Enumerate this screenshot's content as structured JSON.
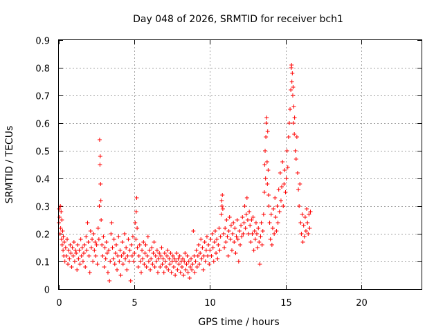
{
  "chart_data": {
    "type": "scatter",
    "title": "Day 048 of 2026, SRMTID for receiver bch1",
    "xlabel": "GPS time / hours",
    "ylabel": "SRMTID / TECUs",
    "xlim": [
      0,
      24
    ],
    "ylim": [
      0,
      0.9
    ],
    "x_ticks": [
      0,
      5,
      10,
      15,
      20
    ],
    "x_tick_labels": [
      "0",
      "5",
      "10",
      "15",
      "20"
    ],
    "y_ticks": [
      0,
      0.1,
      0.2,
      0.3,
      0.4,
      0.5,
      0.6,
      0.7,
      0.8,
      0.9
    ],
    "y_tick_labels": [
      "0",
      "0.1",
      "0.2",
      "0.3",
      "0.4",
      "0.5",
      "0.6",
      "0.7",
      "0.8",
      "0.9"
    ],
    "grid": true,
    "marker": "plus",
    "series_color": "#ff0000",
    "points": [
      [
        0.0,
        0.24
      ],
      [
        0.02,
        0.29
      ],
      [
        0.05,
        0.26
      ],
      [
        0.08,
        0.2
      ],
      [
        0.1,
        0.3
      ],
      [
        0.12,
        0.22
      ],
      [
        0.15,
        0.28
      ],
      [
        0.18,
        0.18
      ],
      [
        0.2,
        0.25
      ],
      [
        0.22,
        0.16
      ],
      [
        0.25,
        0.21
      ],
      [
        0.28,
        0.14
      ],
      [
        0.3,
        0.19
      ],
      [
        0.33,
        0.12
      ],
      [
        0.36,
        0.17
      ],
      [
        0.4,
        0.1
      ],
      [
        0.45,
        0.15
      ],
      [
        0.5,
        0.12
      ],
      [
        0.55,
        0.18
      ],
      [
        0.6,
        0.09
      ],
      [
        0.65,
        0.14
      ],
      [
        0.7,
        0.11
      ],
      [
        0.75,
        0.16
      ],
      [
        0.8,
        0.13
      ],
      [
        0.85,
        0.08
      ],
      [
        0.9,
        0.15
      ],
      [
        0.95,
        0.12
      ],
      [
        1.0,
        0.17
      ],
      [
        1.05,
        0.1
      ],
      [
        1.1,
        0.14
      ],
      [
        1.15,
        0.13
      ],
      [
        1.2,
        0.07
      ],
      [
        1.25,
        0.16
      ],
      [
        1.3,
        0.11
      ],
      [
        1.35,
        0.14
      ],
      [
        1.4,
        0.09
      ],
      [
        1.45,
        0.18
      ],
      [
        1.5,
        0.12
      ],
      [
        1.55,
        0.15
      ],
      [
        1.6,
        0.1
      ],
      [
        1.65,
        0.13
      ],
      [
        1.7,
        0.16
      ],
      [
        1.75,
        0.08
      ],
      [
        1.8,
        0.19
      ],
      [
        1.85,
        0.14
      ],
      [
        1.9,
        0.24
      ],
      [
        1.95,
        0.17
      ],
      [
        2.0,
        0.12
      ],
      [
        2.05,
        0.06
      ],
      [
        2.1,
        0.21
      ],
      [
        2.15,
        0.15
      ],
      [
        2.2,
        0.18
      ],
      [
        2.25,
        0.1
      ],
      [
        2.3,
        0.2
      ],
      [
        2.35,
        0.14
      ],
      [
        2.4,
        0.17
      ],
      [
        2.45,
        0.12
      ],
      [
        2.5,
        0.16
      ],
      [
        2.55,
        0.09
      ],
      [
        2.6,
        0.22
      ],
      [
        2.65,
        0.18
      ],
      [
        2.68,
        0.3
      ],
      [
        2.7,
        0.54
      ],
      [
        2.72,
        0.45
      ],
      [
        2.74,
        0.48
      ],
      [
        2.76,
        0.38
      ],
      [
        2.78,
        0.32
      ],
      [
        2.8,
        0.25
      ],
      [
        2.85,
        0.16
      ],
      [
        2.9,
        0.12
      ],
      [
        2.95,
        0.19
      ],
      [
        3.0,
        0.08
      ],
      [
        3.05,
        0.15
      ],
      [
        3.1,
        0.11
      ],
      [
        3.15,
        0.17
      ],
      [
        3.2,
        0.13
      ],
      [
        3.25,
        0.06
      ],
      [
        3.3,
        0.14
      ],
      [
        3.35,
        0.03
      ],
      [
        3.4,
        0.1
      ],
      [
        3.45,
        0.2
      ],
      [
        3.5,
        0.24
      ],
      [
        3.55,
        0.15
      ],
      [
        3.6,
        0.11
      ],
      [
        3.65,
        0.18
      ],
      [
        3.7,
        0.09
      ],
      [
        3.75,
        0.13
      ],
      [
        3.8,
        0.16
      ],
      [
        3.85,
        0.07
      ],
      [
        3.9,
        0.12
      ],
      [
        3.95,
        0.19
      ],
      [
        4.0,
        0.1
      ],
      [
        4.05,
        0.14
      ],
      [
        4.1,
        0.05
      ],
      [
        4.15,
        0.12
      ],
      [
        4.2,
        0.17
      ],
      [
        4.25,
        0.09
      ],
      [
        4.3,
        0.13
      ],
      [
        4.35,
        0.2
      ],
      [
        4.4,
        0.11
      ],
      [
        4.45,
        0.15
      ],
      [
        4.5,
        0.07
      ],
      [
        4.55,
        0.12
      ],
      [
        4.6,
        0.18
      ],
      [
        4.65,
        0.1
      ],
      [
        4.7,
        0.14
      ],
      [
        4.75,
        0.03
      ],
      [
        4.8,
        0.16
      ],
      [
        4.85,
        0.12
      ],
      [
        4.9,
        0.19
      ],
      [
        4.95,
        0.1
      ],
      [
        5.0,
        0.13
      ],
      [
        5.05,
        0.24
      ],
      [
        5.1,
        0.18
      ],
      [
        5.12,
        0.28
      ],
      [
        5.15,
        0.33
      ],
      [
        5.18,
        0.22
      ],
      [
        5.2,
        0.15
      ],
      [
        5.25,
        0.08
      ],
      [
        5.3,
        0.12
      ],
      [
        5.35,
        0.16
      ],
      [
        5.4,
        0.1
      ],
      [
        5.45,
        0.06
      ],
      [
        5.5,
        0.14
      ],
      [
        5.55,
        0.11
      ],
      [
        5.6,
        0.17
      ],
      [
        5.65,
        0.09
      ],
      [
        5.7,
        0.13
      ],
      [
        5.75,
        0.16
      ],
      [
        5.8,
        0.08
      ],
      [
        5.85,
        0.12
      ],
      [
        5.9,
        0.19
      ],
      [
        5.95,
        0.1
      ],
      [
        6.0,
        0.14
      ],
      [
        6.05,
        0.07
      ],
      [
        6.1,
        0.11
      ],
      [
        6.15,
        0.15
      ],
      [
        6.2,
        0.09
      ],
      [
        6.25,
        0.13
      ],
      [
        6.3,
        0.17
      ],
      [
        6.35,
        0.08
      ],
      [
        6.4,
        0.12
      ],
      [
        6.45,
        0.1
      ],
      [
        6.5,
        0.14
      ],
      [
        6.55,
        0.06
      ],
      [
        6.6,
        0.11
      ],
      [
        6.65,
        0.13
      ],
      [
        6.7,
        0.08
      ],
      [
        6.75,
        0.12
      ],
      [
        6.8,
        0.15
      ],
      [
        6.85,
        0.09
      ],
      [
        6.9,
        0.11
      ],
      [
        6.95,
        0.06
      ],
      [
        7.0,
        0.13
      ],
      [
        7.05,
        0.1
      ],
      [
        7.1,
        0.08
      ],
      [
        7.15,
        0.12
      ],
      [
        7.2,
        0.14
      ],
      [
        7.25,
        0.07
      ],
      [
        7.3,
        0.11
      ],
      [
        7.35,
        0.09
      ],
      [
        7.4,
        0.13
      ],
      [
        7.45,
        0.06
      ],
      [
        7.5,
        0.1
      ],
      [
        7.55,
        0.12
      ],
      [
        7.6,
        0.08
      ],
      [
        7.65,
        0.11
      ],
      [
        7.7,
        0.05
      ],
      [
        7.75,
        0.1
      ],
      [
        7.8,
        0.13
      ],
      [
        7.85,
        0.07
      ],
      [
        7.9,
        0.11
      ],
      [
        7.95,
        0.09
      ],
      [
        8.0,
        0.12
      ],
      [
        8.05,
        0.06
      ],
      [
        8.1,
        0.1
      ],
      [
        8.15,
        0.08
      ],
      [
        8.2,
        0.11
      ],
      [
        8.25,
        0.05
      ],
      [
        8.3,
        0.1
      ],
      [
        8.35,
        0.13
      ],
      [
        8.4,
        0.07
      ],
      [
        8.45,
        0.09
      ],
      [
        8.5,
        0.12
      ],
      [
        8.55,
        0.06
      ],
      [
        8.6,
        0.1
      ],
      [
        8.65,
        0.04
      ],
      [
        8.7,
        0.08
      ],
      [
        8.75,
        0.11
      ],
      [
        8.8,
        0.07
      ],
      [
        8.85,
        0.09
      ],
      [
        8.9,
        0.21
      ],
      [
        8.95,
        0.12
      ],
      [
        9.0,
        0.06
      ],
      [
        9.05,
        0.1
      ],
      [
        9.1,
        0.14
      ],
      [
        9.15,
        0.08
      ],
      [
        9.2,
        0.12
      ],
      [
        9.25,
        0.16
      ],
      [
        9.3,
        0.09
      ],
      [
        9.35,
        0.13
      ],
      [
        9.4,
        0.18
      ],
      [
        9.45,
        0.11
      ],
      [
        9.5,
        0.15
      ],
      [
        9.55,
        0.07
      ],
      [
        9.6,
        0.12
      ],
      [
        9.65,
        0.17
      ],
      [
        9.7,
        0.1
      ],
      [
        9.75,
        0.14
      ],
      [
        9.8,
        0.19
      ],
      [
        9.85,
        0.12
      ],
      [
        9.9,
        0.16
      ],
      [
        9.95,
        0.09
      ],
      [
        10.0,
        0.14
      ],
      [
        10.05,
        0.18
      ],
      [
        10.1,
        0.12
      ],
      [
        10.15,
        0.2
      ],
      [
        10.2,
        0.15
      ],
      [
        10.25,
        0.1
      ],
      [
        10.3,
        0.17
      ],
      [
        10.35,
        0.21
      ],
      [
        10.4,
        0.13
      ],
      [
        10.45,
        0.18
      ],
      [
        10.5,
        0.11
      ],
      [
        10.55,
        0.16
      ],
      [
        10.6,
        0.22
      ],
      [
        10.65,
        0.14
      ],
      [
        10.7,
        0.19
      ],
      [
        10.75,
        0.27
      ],
      [
        10.78,
        0.32
      ],
      [
        10.8,
        0.3
      ],
      [
        10.82,
        0.34
      ],
      [
        10.85,
        0.29
      ],
      [
        10.9,
        0.2
      ],
      [
        10.95,
        0.15
      ],
      [
        11.0,
        0.22
      ],
      [
        11.05,
        0.17
      ],
      [
        11.1,
        0.25
      ],
      [
        11.15,
        0.19
      ],
      [
        11.2,
        0.12
      ],
      [
        11.25,
        0.21
      ],
      [
        11.3,
        0.26
      ],
      [
        11.35,
        0.18
      ],
      [
        11.4,
        0.23
      ],
      [
        11.45,
        0.14
      ],
      [
        11.5,
        0.2
      ],
      [
        11.55,
        0.24
      ],
      [
        11.6,
        0.17
      ],
      [
        11.65,
        0.22
      ],
      [
        11.7,
        0.13
      ],
      [
        11.75,
        0.19
      ],
      [
        11.8,
        0.25
      ],
      [
        11.85,
        0.18
      ],
      [
        11.9,
        0.1
      ],
      [
        11.95,
        0.21
      ],
      [
        12.0,
        0.16
      ],
      [
        12.05,
        0.23
      ],
      [
        12.1,
        0.19
      ],
      [
        12.15,
        0.26
      ],
      [
        12.2,
        0.2
      ],
      [
        12.25,
        0.24
      ],
      [
        12.3,
        0.3
      ],
      [
        12.35,
        0.22
      ],
      [
        12.4,
        0.27
      ],
      [
        12.45,
        0.33
      ],
      [
        12.5,
        0.25
      ],
      [
        12.55,
        0.2
      ],
      [
        12.6,
        0.28
      ],
      [
        12.65,
        0.23
      ],
      [
        12.7,
        0.17
      ],
      [
        12.75,
        0.25
      ],
      [
        12.8,
        0.2
      ],
      [
        12.85,
        0.26
      ],
      [
        12.9,
        0.14
      ],
      [
        12.95,
        0.21
      ],
      [
        13.0,
        0.18
      ],
      [
        13.05,
        0.24
      ],
      [
        13.1,
        0.2
      ],
      [
        13.15,
        0.15
      ],
      [
        13.2,
        0.22
      ],
      [
        13.25,
        0.17
      ],
      [
        13.3,
        0.09
      ],
      [
        13.35,
        0.19
      ],
      [
        13.4,
        0.24
      ],
      [
        13.45,
        0.16
      ],
      [
        13.5,
        0.21
      ],
      [
        13.55,
        0.27
      ],
      [
        13.6,
        0.35
      ],
      [
        13.62,
        0.45
      ],
      [
        13.65,
        0.5
      ],
      [
        13.68,
        0.4
      ],
      [
        13.7,
        0.55
      ],
      [
        13.72,
        0.6
      ],
      [
        13.75,
        0.62
      ],
      [
        13.78,
        0.46
      ],
      [
        13.8,
        0.38
      ],
      [
        13.82,
        0.57
      ],
      [
        13.85,
        0.43
      ],
      [
        13.88,
        0.34
      ],
      [
        13.9,
        0.3
      ],
      [
        13.95,
        0.24
      ],
      [
        14.0,
        0.18
      ],
      [
        14.05,
        0.27
      ],
      [
        14.1,
        0.16
      ],
      [
        14.15,
        0.22
      ],
      [
        14.2,
        0.29
      ],
      [
        14.25,
        0.2
      ],
      [
        14.3,
        0.33
      ],
      [
        14.35,
        0.26
      ],
      [
        14.4,
        0.21
      ],
      [
        14.45,
        0.3
      ],
      [
        14.5,
        0.24
      ],
      [
        14.55,
        0.36
      ],
      [
        14.6,
        0.28
      ],
      [
        14.65,
        0.42
      ],
      [
        14.7,
        0.32
      ],
      [
        14.75,
        0.37
      ],
      [
        14.8,
        0.46
      ],
      [
        14.85,
        0.3
      ],
      [
        14.9,
        0.38
      ],
      [
        14.95,
        0.43
      ],
      [
        15.0,
        0.35
      ],
      [
        15.05,
        0.4
      ],
      [
        15.1,
        0.5
      ],
      [
        15.15,
        0.44
      ],
      [
        15.2,
        0.55
      ],
      [
        15.25,
        0.6
      ],
      [
        15.3,
        0.65
      ],
      [
        15.35,
        0.72
      ],
      [
        15.38,
        0.8
      ],
      [
        15.4,
        0.81
      ],
      [
        15.42,
        0.75
      ],
      [
        15.45,
        0.78
      ],
      [
        15.48,
        0.7
      ],
      [
        15.5,
        0.73
      ],
      [
        15.52,
        0.6
      ],
      [
        15.55,
        0.66
      ],
      [
        15.58,
        0.56
      ],
      [
        15.6,
        0.62
      ],
      [
        15.65,
        0.5
      ],
      [
        15.7,
        0.47
      ],
      [
        15.75,
        0.55
      ],
      [
        15.8,
        0.42
      ],
      [
        15.85,
        0.36
      ],
      [
        15.9,
        0.3
      ],
      [
        15.95,
        0.38
      ],
      [
        16.0,
        0.24
      ],
      [
        16.05,
        0.2
      ],
      [
        16.1,
        0.27
      ],
      [
        16.15,
        0.17
      ],
      [
        16.2,
        0.23
      ],
      [
        16.25,
        0.19
      ],
      [
        16.3,
        0.26
      ],
      [
        16.35,
        0.21
      ],
      [
        16.4,
        0.29
      ],
      [
        16.45,
        0.24
      ],
      [
        16.5,
        0.2
      ],
      [
        16.55,
        0.27
      ],
      [
        16.6,
        0.22
      ],
      [
        16.65,
        0.28
      ]
    ]
  }
}
